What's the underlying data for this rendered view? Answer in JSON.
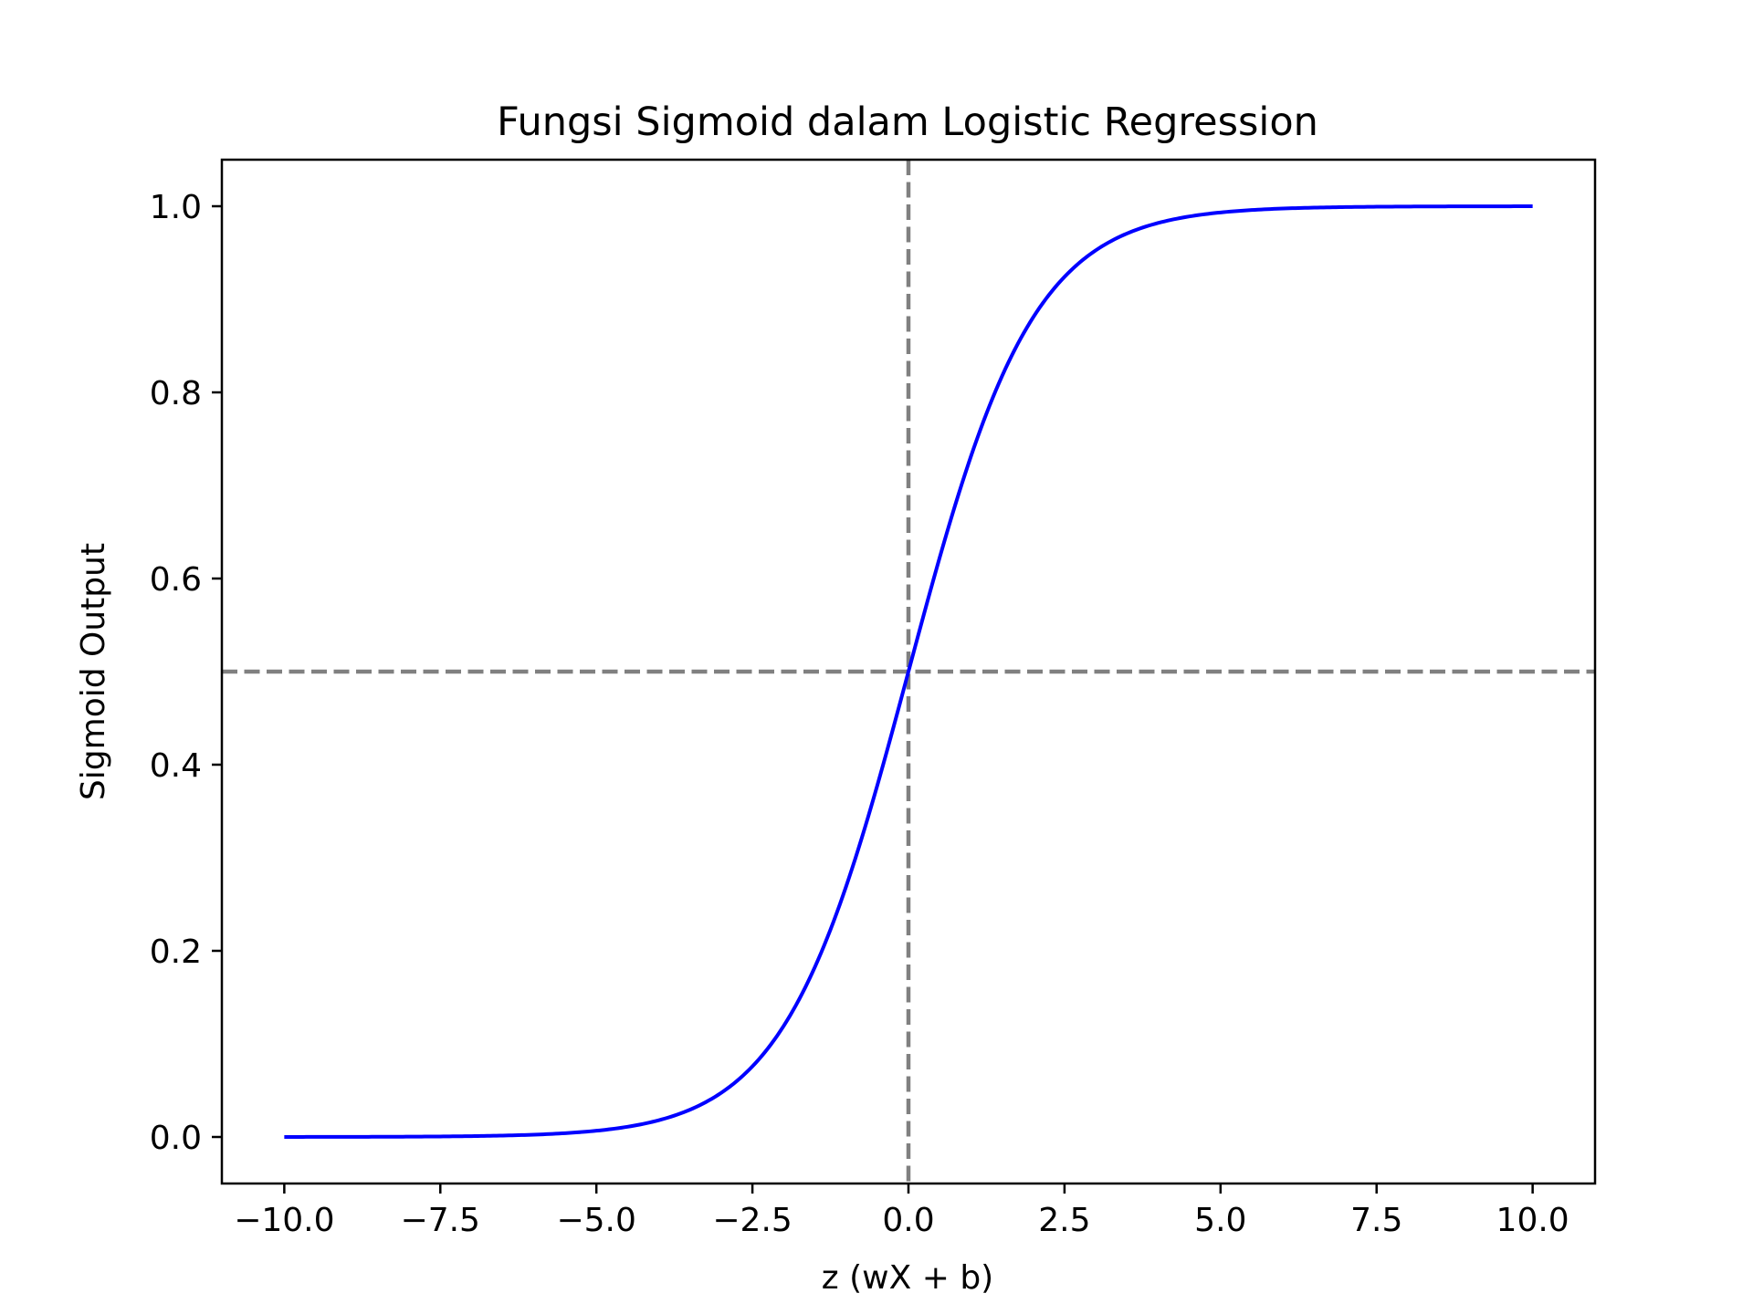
{
  "chart_data": {
    "type": "line",
    "title": "Fungsi Sigmoid dalam Logistic Regression",
    "xlabel": "z (wX + b)",
    "ylabel": "Sigmoid Output",
    "xlim": [
      -11.0,
      11.0
    ],
    "ylim": [
      -0.05,
      1.05
    ],
    "xticks": [
      -10.0,
      -7.5,
      -5.0,
      -2.5,
      0.0,
      2.5,
      5.0,
      7.5,
      10.0
    ],
    "xtick_labels": [
      "−10.0",
      "−7.5",
      "−5.0",
      "−2.5",
      "0.0",
      "2.5",
      "5.0",
      "7.5",
      "10.0"
    ],
    "yticks": [
      0.0,
      0.2,
      0.4,
      0.6,
      0.8,
      1.0
    ],
    "ytick_labels": [
      "0.0",
      "0.2",
      "0.4",
      "0.6",
      "0.8",
      "1.0"
    ],
    "grid": false,
    "series": [
      {
        "function": "sigmoid",
        "color": "#0000ff",
        "x": [
          -10.0,
          -9.0,
          -8.0,
          -7.0,
          -6.0,
          -5.0,
          -4.5,
          -4.0,
          -3.5,
          -3.0,
          -2.5,
          -2.0,
          -1.5,
          -1.0,
          -0.5,
          0.0,
          0.5,
          1.0,
          1.5,
          2.0,
          2.5,
          3.0,
          3.5,
          4.0,
          4.5,
          5.0,
          6.0,
          7.0,
          8.0,
          9.0,
          10.0
        ],
        "y": [
          4.54e-05,
          0.000123,
          0.000335,
          0.000911,
          0.00247,
          0.00669,
          0.011,
          0.018,
          0.0293,
          0.0474,
          0.0759,
          0.1192,
          0.1824,
          0.2689,
          0.3775,
          0.5,
          0.6225,
          0.7311,
          0.8176,
          0.8808,
          0.9241,
          0.9526,
          0.9707,
          0.982,
          0.989,
          0.9933,
          0.99753,
          0.99909,
          0.99966,
          0.99988,
          0.99995
        ]
      }
    ],
    "reference_lines": [
      {
        "orientation": "horizontal",
        "value": 0.5,
        "style": "dashed",
        "color": "#808080"
      },
      {
        "orientation": "vertical",
        "value": 0.0,
        "style": "dashed",
        "color": "#808080"
      }
    ]
  }
}
